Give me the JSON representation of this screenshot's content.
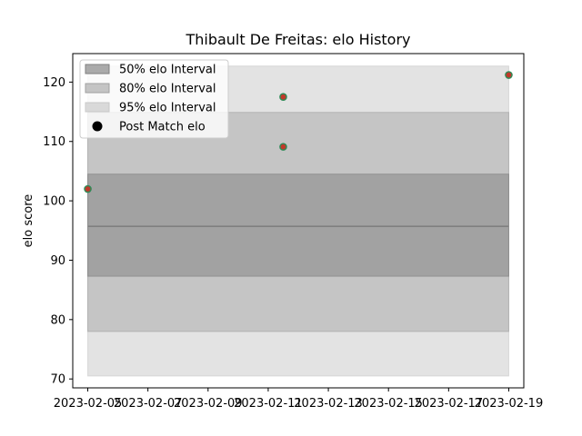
{
  "chart_data": {
    "type": "scatter",
    "title": "Thibault De Freitas: elo History",
    "xlabel": "",
    "ylabel": "elo score",
    "xlim": [
      "2023-02-04T12:00",
      "2023-02-19T12:00"
    ],
    "ylim": [
      68.5,
      124.8
    ],
    "x_ticks": [
      "2023-02-05",
      "2023-02-07",
      "2023-02-09",
      "2023-02-11",
      "2023-02-13",
      "2023-02-15",
      "2023-02-17",
      "2023-02-19"
    ],
    "y_ticks": [
      70,
      80,
      90,
      100,
      110,
      120
    ],
    "grid": false,
    "legend_position": "top-left",
    "mean_elo": 95.7,
    "band_x_range": [
      "2023-02-05",
      "2023-02-19"
    ],
    "intervals": [
      {
        "name": "50% elo Interval",
        "low": 87.3,
        "high": 104.5,
        "color": "#7f7f7f",
        "alpha": 0.5
      },
      {
        "name": "80% elo Interval",
        "low": 78.0,
        "high": 114.9,
        "color": "#a0a0a0",
        "alpha": 0.45
      },
      {
        "name": "95% elo Interval",
        "low": 70.5,
        "high": 122.7,
        "color": "#c8c8c8",
        "alpha": 0.5
      }
    ],
    "series": [
      {
        "name": "Post Match elo",
        "points": [
          {
            "x": "2023-02-05",
            "y": 102.0
          },
          {
            "x": "2023-02-11T12:00",
            "y": 117.5
          },
          {
            "x": "2023-02-11T12:00",
            "y": 109.1
          },
          {
            "x": "2023-02-19",
            "y": 121.2
          }
        ],
        "marker_color": "#c0392b",
        "edge_color": "#2e8b57"
      }
    ]
  }
}
